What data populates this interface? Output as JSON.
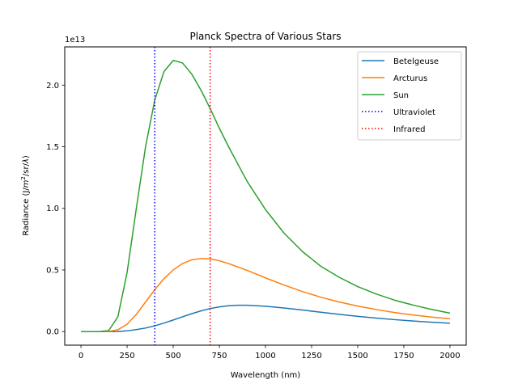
{
  "chart_data": {
    "type": "line",
    "title": "Planck Spectra of Various Stars",
    "xlabel": "Wavelength (nm)",
    "ylabel_parts": [
      "Radiance (J/",
      "m",
      "2",
      "/sr/",
      "λ",
      ")"
    ],
    "offset_label": "1e13",
    "xlim": [
      -88,
      2088
    ],
    "ylim": [
      -0.11,
      2.31
    ],
    "x_ticks": [
      0,
      250,
      500,
      750,
      1000,
      1250,
      1500,
      1750,
      2000
    ],
    "y_ticks": [
      0.0,
      0.5,
      1.0,
      1.5,
      2.0
    ],
    "y_tick_labels": [
      "0.0",
      "0.5",
      "1.0",
      "1.5",
      "2.0"
    ],
    "legend_position": "top-right",
    "grid": false,
    "series": [
      {
        "name": "Betelgeuse",
        "color": "#1f77b4",
        "x": [
          1,
          100,
          200,
          250,
          300,
          350,
          400,
          450,
          500,
          550,
          600,
          650,
          700,
          750,
          800,
          850,
          900,
          1000,
          1100,
          1200,
          1300,
          1400,
          1500,
          1600,
          1700,
          1800,
          1900,
          2000
        ],
        "values": [
          0,
          0,
          0.001,
          0.006,
          0.016,
          0.029,
          0.047,
          0.069,
          0.094,
          0.12,
          0.145,
          0.168,
          0.187,
          0.201,
          0.21,
          0.214,
          0.214,
          0.206,
          0.192,
          0.175,
          0.157,
          0.14,
          0.124,
          0.11,
          0.097,
          0.086,
          0.076,
          0.068
        ]
      },
      {
        "name": "Arcturus",
        "color": "#ff7f0e",
        "x": [
          1,
          100,
          150,
          200,
          250,
          300,
          350,
          400,
          450,
          500,
          550,
          600,
          650,
          700,
          750,
          800,
          900,
          1000,
          1100,
          1200,
          1300,
          1400,
          1500,
          1600,
          1700,
          1800,
          1900,
          2000
        ],
        "values": [
          0,
          0,
          0.001,
          0.015,
          0.06,
          0.14,
          0.24,
          0.34,
          0.43,
          0.5,
          0.552,
          0.582,
          0.593,
          0.59,
          0.575,
          0.552,
          0.497,
          0.436,
          0.378,
          0.325,
          0.279,
          0.24,
          0.207,
          0.179,
          0.155,
          0.135,
          0.118,
          0.104
        ]
      },
      {
        "name": "Sun",
        "color": "#2ca02c",
        "x": [
          1,
          100,
          150,
          200,
          250,
          300,
          350,
          400,
          450,
          500,
          550,
          600,
          650,
          700,
          750,
          800,
          900,
          1000,
          1100,
          1200,
          1300,
          1400,
          1500,
          1600,
          1700,
          1800,
          1900,
          2000
        ],
        "values": [
          0,
          0,
          0.008,
          0.12,
          0.48,
          1.0,
          1.5,
          1.88,
          2.11,
          2.2,
          2.18,
          2.09,
          1.96,
          1.81,
          1.65,
          1.5,
          1.22,
          0.99,
          0.8,
          0.65,
          0.53,
          0.44,
          0.365,
          0.305,
          0.255,
          0.215,
          0.18,
          0.15
        ]
      }
    ],
    "vlines": [
      {
        "name": "Ultraviolet",
        "x": 400,
        "color": "#0000ff"
      },
      {
        "name": "Infrared",
        "x": 700,
        "color": "#ff0000"
      }
    ]
  }
}
